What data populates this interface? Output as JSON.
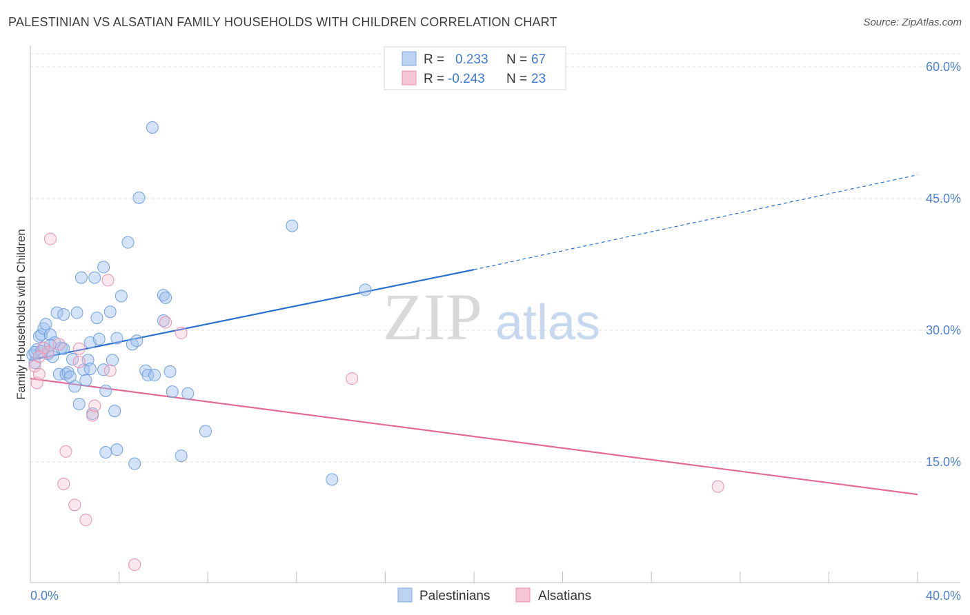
{
  "title": "PALESTINIAN VS ALSATIAN FAMILY HOUSEHOLDS WITH CHILDREN CORRELATION CHART",
  "source": "Source: ZipAtlas.com",
  "watermark": {
    "zip": "ZIP",
    "atlas": "atlas"
  },
  "colors": {
    "blue": "#6fa0e0",
    "blue_line": "#2a6fd0",
    "pink": "#e892ad",
    "pink_line": "#e26a94",
    "axis_text": "#4a7fcf"
  },
  "legend": {
    "rows": [
      {
        "r_label": "R =",
        "r_value": "0.233",
        "n_label": "N =",
        "n_value": "67"
      },
      {
        "r_label": "R =",
        "r_value": "-0.243",
        "n_label": "N =",
        "n_value": "23"
      }
    ]
  },
  "chart_data": {
    "type": "scatter",
    "title": "PALESTINIAN VS ALSATIAN FAMILY HOUSEHOLDS WITH CHILDREN CORRELATION CHART",
    "xlabel": "",
    "ylabel": "Family Households with Children",
    "xlim": [
      0,
      40
    ],
    "ylim": [
      0,
      62
    ],
    "x_tick_labels": [
      "0.0%",
      "40.0%"
    ],
    "y_tick_values": [
      15,
      30,
      45,
      60
    ],
    "y_tick_labels": [
      "15.0%",
      "30.0%",
      "45.0%",
      "60.0%"
    ],
    "grid": true,
    "legend_position": "top-center",
    "series": [
      {
        "name": "Palestinians",
        "color": "#6fa0e0",
        "points": [
          [
            0.1,
            27.2
          ],
          [
            0.2,
            26.3
          ],
          [
            0.3,
            27.8
          ],
          [
            0.4,
            29.3
          ],
          [
            0.5,
            29.5
          ],
          [
            0.6,
            28.0
          ],
          [
            0.6,
            30.2
          ],
          [
            0.7,
            30.7
          ],
          [
            0.8,
            27.3
          ],
          [
            0.9,
            29.5
          ],
          [
            1.0,
            27.0
          ],
          [
            1.1,
            28.6
          ],
          [
            1.2,
            32.0
          ],
          [
            1.3,
            25.0
          ],
          [
            1.4,
            28.0
          ],
          [
            1.5,
            31.8
          ],
          [
            1.6,
            25.0
          ],
          [
            1.7,
            25.2
          ],
          [
            1.8,
            24.7
          ],
          [
            1.9,
            26.7
          ],
          [
            2.0,
            23.6
          ],
          [
            2.1,
            32.0
          ],
          [
            2.2,
            21.6
          ],
          [
            2.3,
            36.0
          ],
          [
            2.4,
            25.5
          ],
          [
            2.5,
            24.3
          ],
          [
            2.6,
            26.6
          ],
          [
            2.7,
            25.6
          ],
          [
            2.7,
            28.6
          ],
          [
            2.8,
            20.5
          ],
          [
            2.9,
            36.0
          ],
          [
            3.0,
            31.4
          ],
          [
            3.1,
            29.0
          ],
          [
            3.3,
            25.5
          ],
          [
            3.3,
            37.2
          ],
          [
            3.4,
            23.1
          ],
          [
            3.4,
            16.1
          ],
          [
            3.6,
            32.1
          ],
          [
            3.7,
            26.6
          ],
          [
            3.8,
            20.8
          ],
          [
            3.9,
            16.4
          ],
          [
            3.9,
            29.1
          ],
          [
            4.1,
            33.9
          ],
          [
            4.4,
            40.0
          ],
          [
            4.6,
            28.4
          ],
          [
            4.7,
            14.8
          ],
          [
            4.8,
            28.8
          ],
          [
            4.9,
            45.1
          ],
          [
            5.2,
            25.4
          ],
          [
            5.3,
            24.9
          ],
          [
            5.6,
            24.9
          ],
          [
            5.5,
            53.1
          ],
          [
            6.0,
            34.0
          ],
          [
            6.0,
            31.1
          ],
          [
            6.1,
            33.7
          ],
          [
            6.3,
            25.3
          ],
          [
            6.4,
            23.0
          ],
          [
            6.8,
            15.7
          ],
          [
            7.1,
            22.8
          ],
          [
            7.9,
            18.5
          ],
          [
            11.8,
            41.9
          ],
          [
            13.6,
            13.0
          ],
          [
            15.1,
            34.6
          ],
          [
            0.2,
            27.5
          ],
          [
            0.5,
            27.6
          ],
          [
            0.9,
            28.3
          ],
          [
            1.5,
            27.9
          ]
        ]
      },
      {
        "name": "Alsatians",
        "color": "#e892ad",
        "points": [
          [
            0.2,
            25.9
          ],
          [
            0.3,
            24.0
          ],
          [
            0.4,
            25.0
          ],
          [
            0.6,
            28.0
          ],
          [
            0.8,
            27.5
          ],
          [
            0.9,
            40.4
          ],
          [
            1.3,
            28.4
          ],
          [
            1.5,
            12.5
          ],
          [
            1.6,
            16.2
          ],
          [
            2.0,
            10.1
          ],
          [
            2.2,
            26.4
          ],
          [
            2.2,
            27.9
          ],
          [
            2.5,
            8.4
          ],
          [
            2.8,
            20.3
          ],
          [
            2.9,
            21.4
          ],
          [
            3.5,
            35.7
          ],
          [
            3.6,
            25.4
          ],
          [
            4.7,
            3.3
          ],
          [
            6.1,
            30.9
          ],
          [
            6.8,
            29.7
          ],
          [
            14.5,
            24.5
          ],
          [
            31.0,
            12.2
          ],
          [
            0.4,
            27.0
          ]
        ]
      }
    ],
    "trend_lines": [
      {
        "series": "Palestinians",
        "solid": [
          [
            0,
            26.6
          ],
          [
            20,
            36.9
          ]
        ],
        "dashed": [
          [
            20,
            36.9
          ],
          [
            40,
            47.7
          ]
        ]
      },
      {
        "series": "Alsatians",
        "solid": [
          [
            0,
            24.5
          ],
          [
            40,
            11.3
          ]
        ]
      }
    ]
  }
}
